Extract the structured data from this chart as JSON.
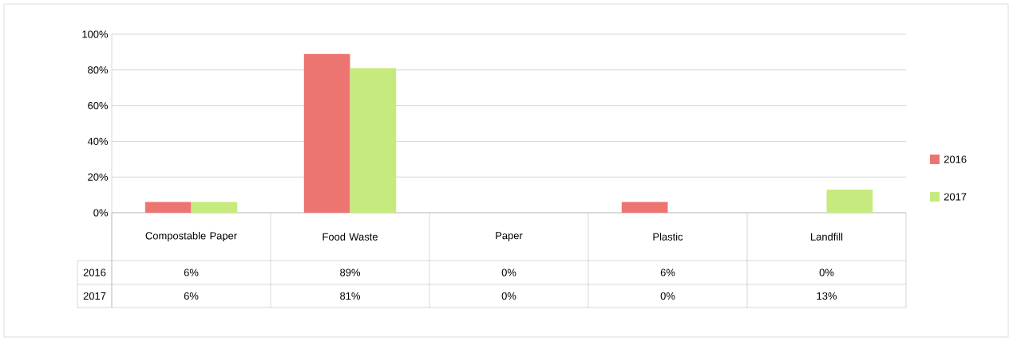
{
  "chart_data": {
    "type": "bar",
    "categories": [
      "Compostable Paper",
      "Food Waste",
      "Paper",
      "Plastic",
      "Landfill"
    ],
    "series": [
      {
        "name": "2016",
        "color": "#ec7572",
        "values": [
          6,
          89,
          0,
          6,
          0
        ],
        "value_labels": [
          "6%",
          "89%",
          "0%",
          "6%",
          "0%"
        ]
      },
      {
        "name": "2017",
        "color": "#c6ea7e",
        "values": [
          6,
          81,
          0,
          0,
          13
        ],
        "value_labels": [
          "6%",
          "81%",
          "0%",
          "0%",
          "13%"
        ]
      }
    ],
    "ylim": [
      0,
      100
    ],
    "yticks": [
      {
        "value": 0,
        "label": "0%"
      },
      {
        "value": 20,
        "label": "20%"
      },
      {
        "value": 40,
        "label": "40%"
      },
      {
        "value": 60,
        "label": "60%"
      },
      {
        "value": 80,
        "label": "80%"
      },
      {
        "value": 100,
        "label": "100%"
      }
    ],
    "grid": "y",
    "legend": "right"
  }
}
